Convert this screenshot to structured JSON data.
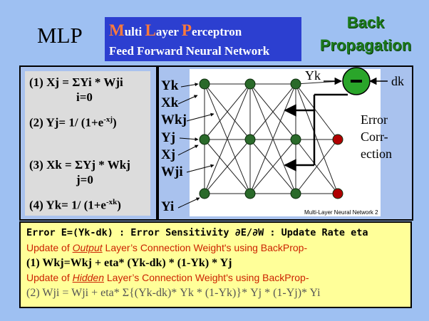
{
  "header": {
    "mlp": "MLP",
    "title_line1": {
      "parts": [
        {
          "cap": "M",
          "rest": "ulti "
        },
        {
          "cap": "L",
          "rest": "ayer "
        },
        {
          "cap": "P",
          "rest": "erceptron"
        }
      ]
    },
    "title_line2": "Feed Forward Neural Network",
    "back": "Back",
    "propagation": "Propagation"
  },
  "formulas": {
    "f1": "(1) Xj = ΣYi * Wji",
    "f1_sub": "i=0",
    "f2_pre": "(2) Yj= 1/ (1+e",
    "f2_sup": "-xj",
    "f2_post": ")",
    "f3": "(3) Xk = ΣYj * Wkj",
    "f3_sub": "j=0",
    "f4_pre": "(4) Yk= 1/ (1+e",
    "f4_sup": "-xk",
    "f4_post": ")"
  },
  "network": {
    "left_labels": [
      "Yk",
      "Xk",
      "Wkj",
      "Yj",
      "Xj",
      "Wji",
      "Yi"
    ],
    "yk_label": "Yk",
    "dk_label": "dk",
    "minus": "−",
    "error_lines": [
      "Error",
      "Corr-",
      "ection"
    ],
    "caption": "Multi-Layer Neural Network 2",
    "colors": {
      "input_node": "#2a6a2a",
      "output_node": "#b00000",
      "error_circle": "#2aa52a"
    }
  },
  "bottom": {
    "line1": "Error E=(Yk-dk) : Error Sensitivity ∂E/∂W : Update Rate eta",
    "line2_pre": "Update of ",
    "line2_em": "Output",
    "line2_post": " Layer’s Connection Weight's using BackProp-",
    "line3": "(1) Wkj=Wkj + eta* (Yk-dk) * (1-Yk) * Yj",
    "line4_pre": "Update of ",
    "line4_em": "Hidden",
    "line4_post": " Layer’s Connection Weight's using BackProp-",
    "line5": "(2) Wji = Wji + eta* Σ{(Yk-dk)* Yk * (1-Yk)}* Yj * (1-Yj)* Yi"
  }
}
